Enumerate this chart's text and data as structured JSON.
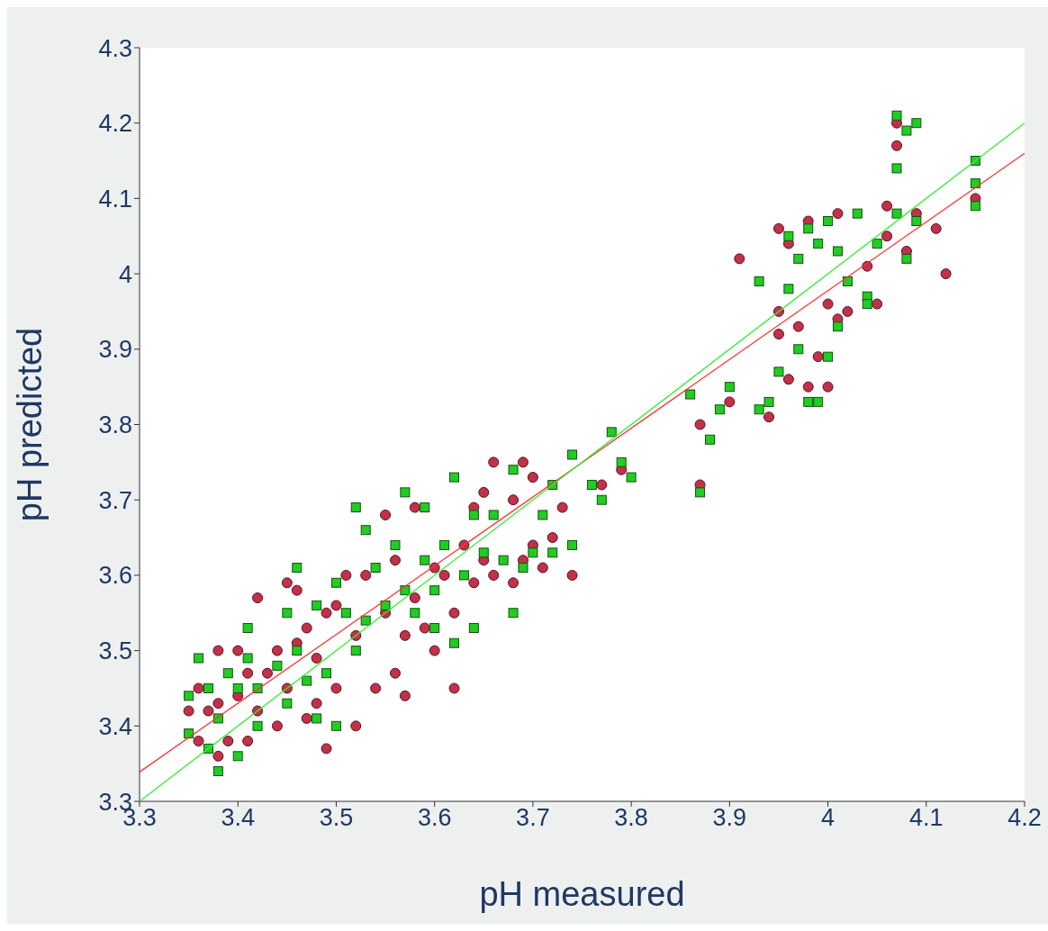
{
  "chart_data": {
    "type": "scatter",
    "xlabel": "pH measured",
    "ylabel": "pH predicted",
    "xlim": [
      3.3,
      4.2
    ],
    "ylim": [
      3.3,
      4.3
    ],
    "xticks": [
      3.3,
      3.4,
      3.5,
      3.6,
      3.7,
      3.8,
      3.9,
      4,
      4.1,
      4.2
    ],
    "yticks": [
      3.3,
      3.4,
      3.5,
      3.6,
      3.7,
      3.8,
      3.9,
      4,
      4.1,
      4.2,
      4.3
    ],
    "grid": false,
    "legend": false,
    "series": [
      {
        "type": "scatter",
        "marker": "circle",
        "color": "#c0314a",
        "x": [
          3.35,
          3.36,
          3.36,
          3.37,
          3.38,
          3.38,
          3.38,
          3.39,
          3.4,
          3.4,
          3.41,
          3.41,
          3.42,
          3.42,
          3.43,
          3.44,
          3.44,
          3.45,
          3.45,
          3.46,
          3.46,
          3.47,
          3.47,
          3.48,
          3.48,
          3.49,
          3.49,
          3.5,
          3.5,
          3.51,
          3.52,
          3.52,
          3.53,
          3.54,
          3.55,
          3.55,
          3.56,
          3.56,
          3.57,
          3.57,
          3.58,
          3.58,
          3.59,
          3.6,
          3.6,
          3.61,
          3.62,
          3.62,
          3.63,
          3.64,
          3.64,
          3.65,
          3.65,
          3.66,
          3.66,
          3.68,
          3.68,
          3.69,
          3.69,
          3.7,
          3.7,
          3.71,
          3.72,
          3.73,
          3.74,
          3.77,
          3.79,
          3.87,
          3.87,
          3.9,
          3.91,
          3.94,
          3.95,
          3.95,
          3.95,
          3.96,
          3.96,
          3.97,
          3.98,
          3.98,
          3.99,
          4.0,
          4.0,
          4.01,
          4.01,
          4.02,
          4.04,
          4.05,
          4.06,
          4.06,
          4.07,
          4.07,
          4.08,
          4.09,
          4.11,
          4.12,
          4.15
        ],
        "values": [
          3.42,
          3.45,
          3.38,
          3.42,
          3.5,
          3.36,
          3.43,
          3.38,
          3.5,
          3.44,
          3.38,
          3.47,
          3.57,
          3.42,
          3.47,
          3.4,
          3.5,
          3.59,
          3.45,
          3.58,
          3.51,
          3.41,
          3.53,
          3.49,
          3.43,
          3.37,
          3.55,
          3.56,
          3.45,
          3.6,
          3.4,
          3.52,
          3.6,
          3.45,
          3.68,
          3.55,
          3.47,
          3.62,
          3.44,
          3.52,
          3.69,
          3.57,
          3.53,
          3.61,
          3.5,
          3.6,
          3.45,
          3.55,
          3.64,
          3.69,
          3.59,
          3.71,
          3.62,
          3.75,
          3.6,
          3.7,
          3.59,
          3.75,
          3.62,
          3.73,
          3.64,
          3.61,
          3.65,
          3.69,
          3.6,
          3.72,
          3.74,
          3.8,
          3.72,
          3.83,
          4.02,
          3.81,
          3.95,
          4.06,
          3.92,
          3.86,
          4.04,
          3.93,
          4.07,
          3.85,
          3.89,
          3.85,
          3.96,
          4.08,
          3.94,
          3.95,
          4.01,
          3.96,
          4.09,
          4.05,
          4.2,
          4.17,
          4.03,
          4.08,
          4.06,
          4.0,
          4.1
        ]
      },
      {
        "type": "scatter",
        "marker": "square",
        "color": "#22cc22",
        "x": [
          3.35,
          3.35,
          3.36,
          3.37,
          3.37,
          3.38,
          3.38,
          3.39,
          3.4,
          3.4,
          3.41,
          3.41,
          3.42,
          3.42,
          3.44,
          3.45,
          3.45,
          3.46,
          3.46,
          3.47,
          3.48,
          3.48,
          3.49,
          3.5,
          3.5,
          3.51,
          3.52,
          3.52,
          3.53,
          3.53,
          3.54,
          3.55,
          3.56,
          3.57,
          3.57,
          3.58,
          3.59,
          3.59,
          3.6,
          3.6,
          3.61,
          3.62,
          3.62,
          3.63,
          3.64,
          3.64,
          3.65,
          3.66,
          3.67,
          3.68,
          3.68,
          3.69,
          3.7,
          3.71,
          3.72,
          3.72,
          3.74,
          3.74,
          3.76,
          3.77,
          3.78,
          3.79,
          3.8,
          3.86,
          3.87,
          3.88,
          3.89,
          3.9,
          3.93,
          3.93,
          3.94,
          3.95,
          3.96,
          3.96,
          3.97,
          3.97,
          3.98,
          3.98,
          3.99,
          3.99,
          4.0,
          4.0,
          4.01,
          4.01,
          4.02,
          4.03,
          4.04,
          4.04,
          4.05,
          4.07,
          4.07,
          4.07,
          4.08,
          4.08,
          4.09,
          4.09,
          4.15,
          4.15,
          4.15
        ],
        "values": [
          3.44,
          3.39,
          3.49,
          3.37,
          3.45,
          3.34,
          3.41,
          3.47,
          3.36,
          3.45,
          3.53,
          3.49,
          3.4,
          3.45,
          3.48,
          3.55,
          3.43,
          3.61,
          3.5,
          3.46,
          3.56,
          3.41,
          3.47,
          3.59,
          3.4,
          3.55,
          3.69,
          3.5,
          3.66,
          3.54,
          3.61,
          3.56,
          3.64,
          3.71,
          3.58,
          3.55,
          3.69,
          3.62,
          3.58,
          3.53,
          3.64,
          3.73,
          3.51,
          3.6,
          3.68,
          3.53,
          3.63,
          3.68,
          3.62,
          3.74,
          3.55,
          3.61,
          3.63,
          3.68,
          3.72,
          3.63,
          3.76,
          3.64,
          3.72,
          3.7,
          3.79,
          3.75,
          3.73,
          3.84,
          3.71,
          3.78,
          3.82,
          3.85,
          3.99,
          3.82,
          3.83,
          3.87,
          4.05,
          3.98,
          4.02,
          3.9,
          4.06,
          3.83,
          4.04,
          3.83,
          3.89,
          4.07,
          4.03,
          3.93,
          3.99,
          4.08,
          3.97,
          3.96,
          4.04,
          4.21,
          4.14,
          4.08,
          4.02,
          4.19,
          4.2,
          4.07,
          4.15,
          4.09,
          4.12
        ]
      },
      {
        "type": "line",
        "marker": "none",
        "line_style": "solid",
        "color": "#ff3333",
        "x": [
          3.3,
          4.2
        ],
        "values": [
          3.339,
          4.16
        ]
      },
      {
        "type": "line",
        "marker": "none",
        "line_style": "solid",
        "color": "#33ee33",
        "x": [
          3.3,
          4.2
        ],
        "values": [
          3.3,
          4.2
        ]
      }
    ]
  }
}
